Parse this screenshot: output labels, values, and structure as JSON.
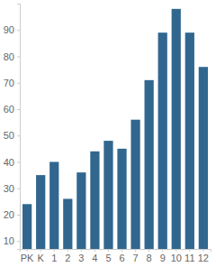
{
  "chart_data": {
    "type": "bar",
    "categories": [
      "PK",
      "K",
      "1",
      "2",
      "3",
      "4",
      "5",
      "6",
      "7",
      "8",
      "9",
      "10",
      "11",
      "12"
    ],
    "values": [
      24,
      35,
      40,
      26,
      36,
      44,
      48,
      45,
      56,
      71,
      89,
      98,
      89,
      76
    ],
    "color": "#31678f",
    "ylim": [
      7,
      100
    ],
    "yticks": [
      10,
      20,
      30,
      40,
      50,
      60,
      70,
      80,
      90
    ],
    "grid": false
  }
}
